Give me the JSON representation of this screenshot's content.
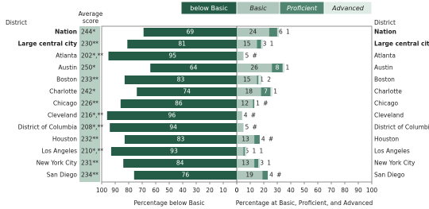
{
  "chart_data": {
    "type": "bar",
    "district_header": "District",
    "score_header": "Average score",
    "categories": [
      "Nation",
      "Large central city",
      "Atlanta",
      "Austin",
      "Boston",
      "Charlotte",
      "Chicago",
      "Cleveland",
      "District of Columbia",
      "Houston",
      "Los Angeles",
      "New York City",
      "San Diego"
    ],
    "scores": [
      "244*",
      "230**",
      "202*,**",
      "250*",
      "233**",
      "242*",
      "226**",
      "216*,**",
      "208*,**",
      "232**",
      "210*,**",
      "231**",
      "234**"
    ],
    "series": [
      {
        "name": "below Basic",
        "color": "#245c47",
        "values": [
          69,
          81,
          95,
          64,
          83,
          74,
          86,
          96,
          94,
          83,
          93,
          84,
          76
        ]
      },
      {
        "name": "Basic",
        "color": "#aec6bb",
        "values": [
          24,
          15,
          5,
          26,
          15,
          18,
          12,
          4,
          5,
          13,
          5,
          13,
          19
        ]
      },
      {
        "name": "Proficient",
        "color": "#4f8571",
        "values": [
          6,
          3,
          0,
          8,
          1,
          7,
          1,
          0,
          0,
          4,
          1,
          3,
          4
        ],
        "value_labels": [
          "6",
          "3",
          "#",
          "8",
          "1",
          "7",
          "1",
          "#",
          "#",
          "4",
          "1",
          "3",
          "4"
        ]
      },
      {
        "name": "Advanced",
        "color": "#dfebe5",
        "values": [
          1,
          1,
          null,
          1,
          2,
          1,
          0,
          null,
          null,
          0,
          1,
          1,
          0
        ],
        "value_labels": [
          "1",
          "1",
          null,
          "1",
          "2",
          "1",
          "#",
          null,
          null,
          "#",
          "1",
          "1",
          "#"
        ]
      }
    ],
    "xticks": [
      0,
      10,
      20,
      30,
      40,
      50,
      60,
      70,
      80,
      90,
      100
    ],
    "xlabel_left": "Percentage below Basic",
    "xlabel_right": "Percentage at Basic, Proficient, and Advanced"
  }
}
